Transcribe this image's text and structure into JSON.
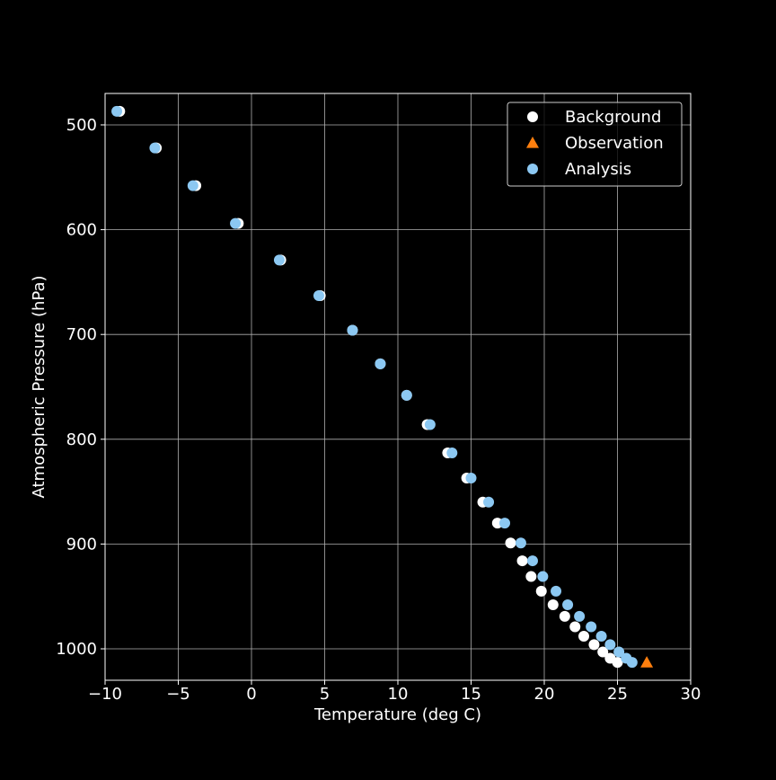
{
  "chart_data": {
    "type": "scatter",
    "title": "",
    "xlabel": "Temperature (deg C)",
    "ylabel": "Atmospheric Pressure (hPa)",
    "xlim": [
      -10,
      30
    ],
    "ylim": [
      1030,
      470
    ],
    "y_inverted": true,
    "xticks": [
      -10,
      -5,
      0,
      5,
      10,
      15,
      20,
      25,
      30
    ],
    "xtick_labels": [
      "−10",
      "−5",
      "0",
      "5",
      "10",
      "15",
      "20",
      "25",
      "30"
    ],
    "yticks": [
      500,
      600,
      700,
      800,
      900,
      1000
    ],
    "ytick_labels": [
      "500",
      "600",
      "700",
      "800",
      "900",
      "1000"
    ],
    "grid": true,
    "legend_position": "top-right",
    "background_color": "#000000",
    "series": [
      {
        "name": "Background",
        "marker": "circle",
        "color": "#ffffff",
        "x": [
          -9.0,
          -6.5,
          -3.8,
          -0.9,
          2.0,
          4.7,
          6.9,
          8.8,
          10.6,
          12.0,
          13.4,
          14.7,
          15.8,
          16.8,
          17.7,
          18.5,
          19.1,
          19.8,
          20.6,
          21.4,
          22.1,
          22.7,
          23.4,
          24.0,
          24.5,
          25.0
        ],
        "y": [
          487,
          522,
          558,
          594,
          629,
          663,
          696,
          728,
          758,
          786,
          813,
          837,
          860,
          880,
          899,
          916,
          931,
          945,
          958,
          969,
          979,
          988,
          996,
          1003,
          1009,
          1013
        ]
      },
      {
        "name": "Observation",
        "marker": "triangle",
        "color": "#ff7f0e",
        "x": [
          27.0
        ],
        "y": [
          1013
        ]
      },
      {
        "name": "Analysis",
        "marker": "circle",
        "color": "#8cc8f2",
        "x": [
          -9.2,
          -6.6,
          -4.0,
          -1.1,
          1.9,
          4.6,
          6.9,
          8.8,
          10.6,
          12.2,
          13.7,
          15.0,
          16.2,
          17.3,
          18.4,
          19.2,
          19.9,
          20.8,
          21.6,
          22.4,
          23.2,
          23.9,
          24.5,
          25.1,
          25.6,
          26.0
        ],
        "y": [
          487,
          522,
          558,
          594,
          629,
          663,
          696,
          728,
          758,
          786,
          813,
          837,
          860,
          880,
          899,
          916,
          931,
          945,
          958,
          969,
          979,
          988,
          996,
          1003,
          1009,
          1013
        ]
      }
    ]
  }
}
